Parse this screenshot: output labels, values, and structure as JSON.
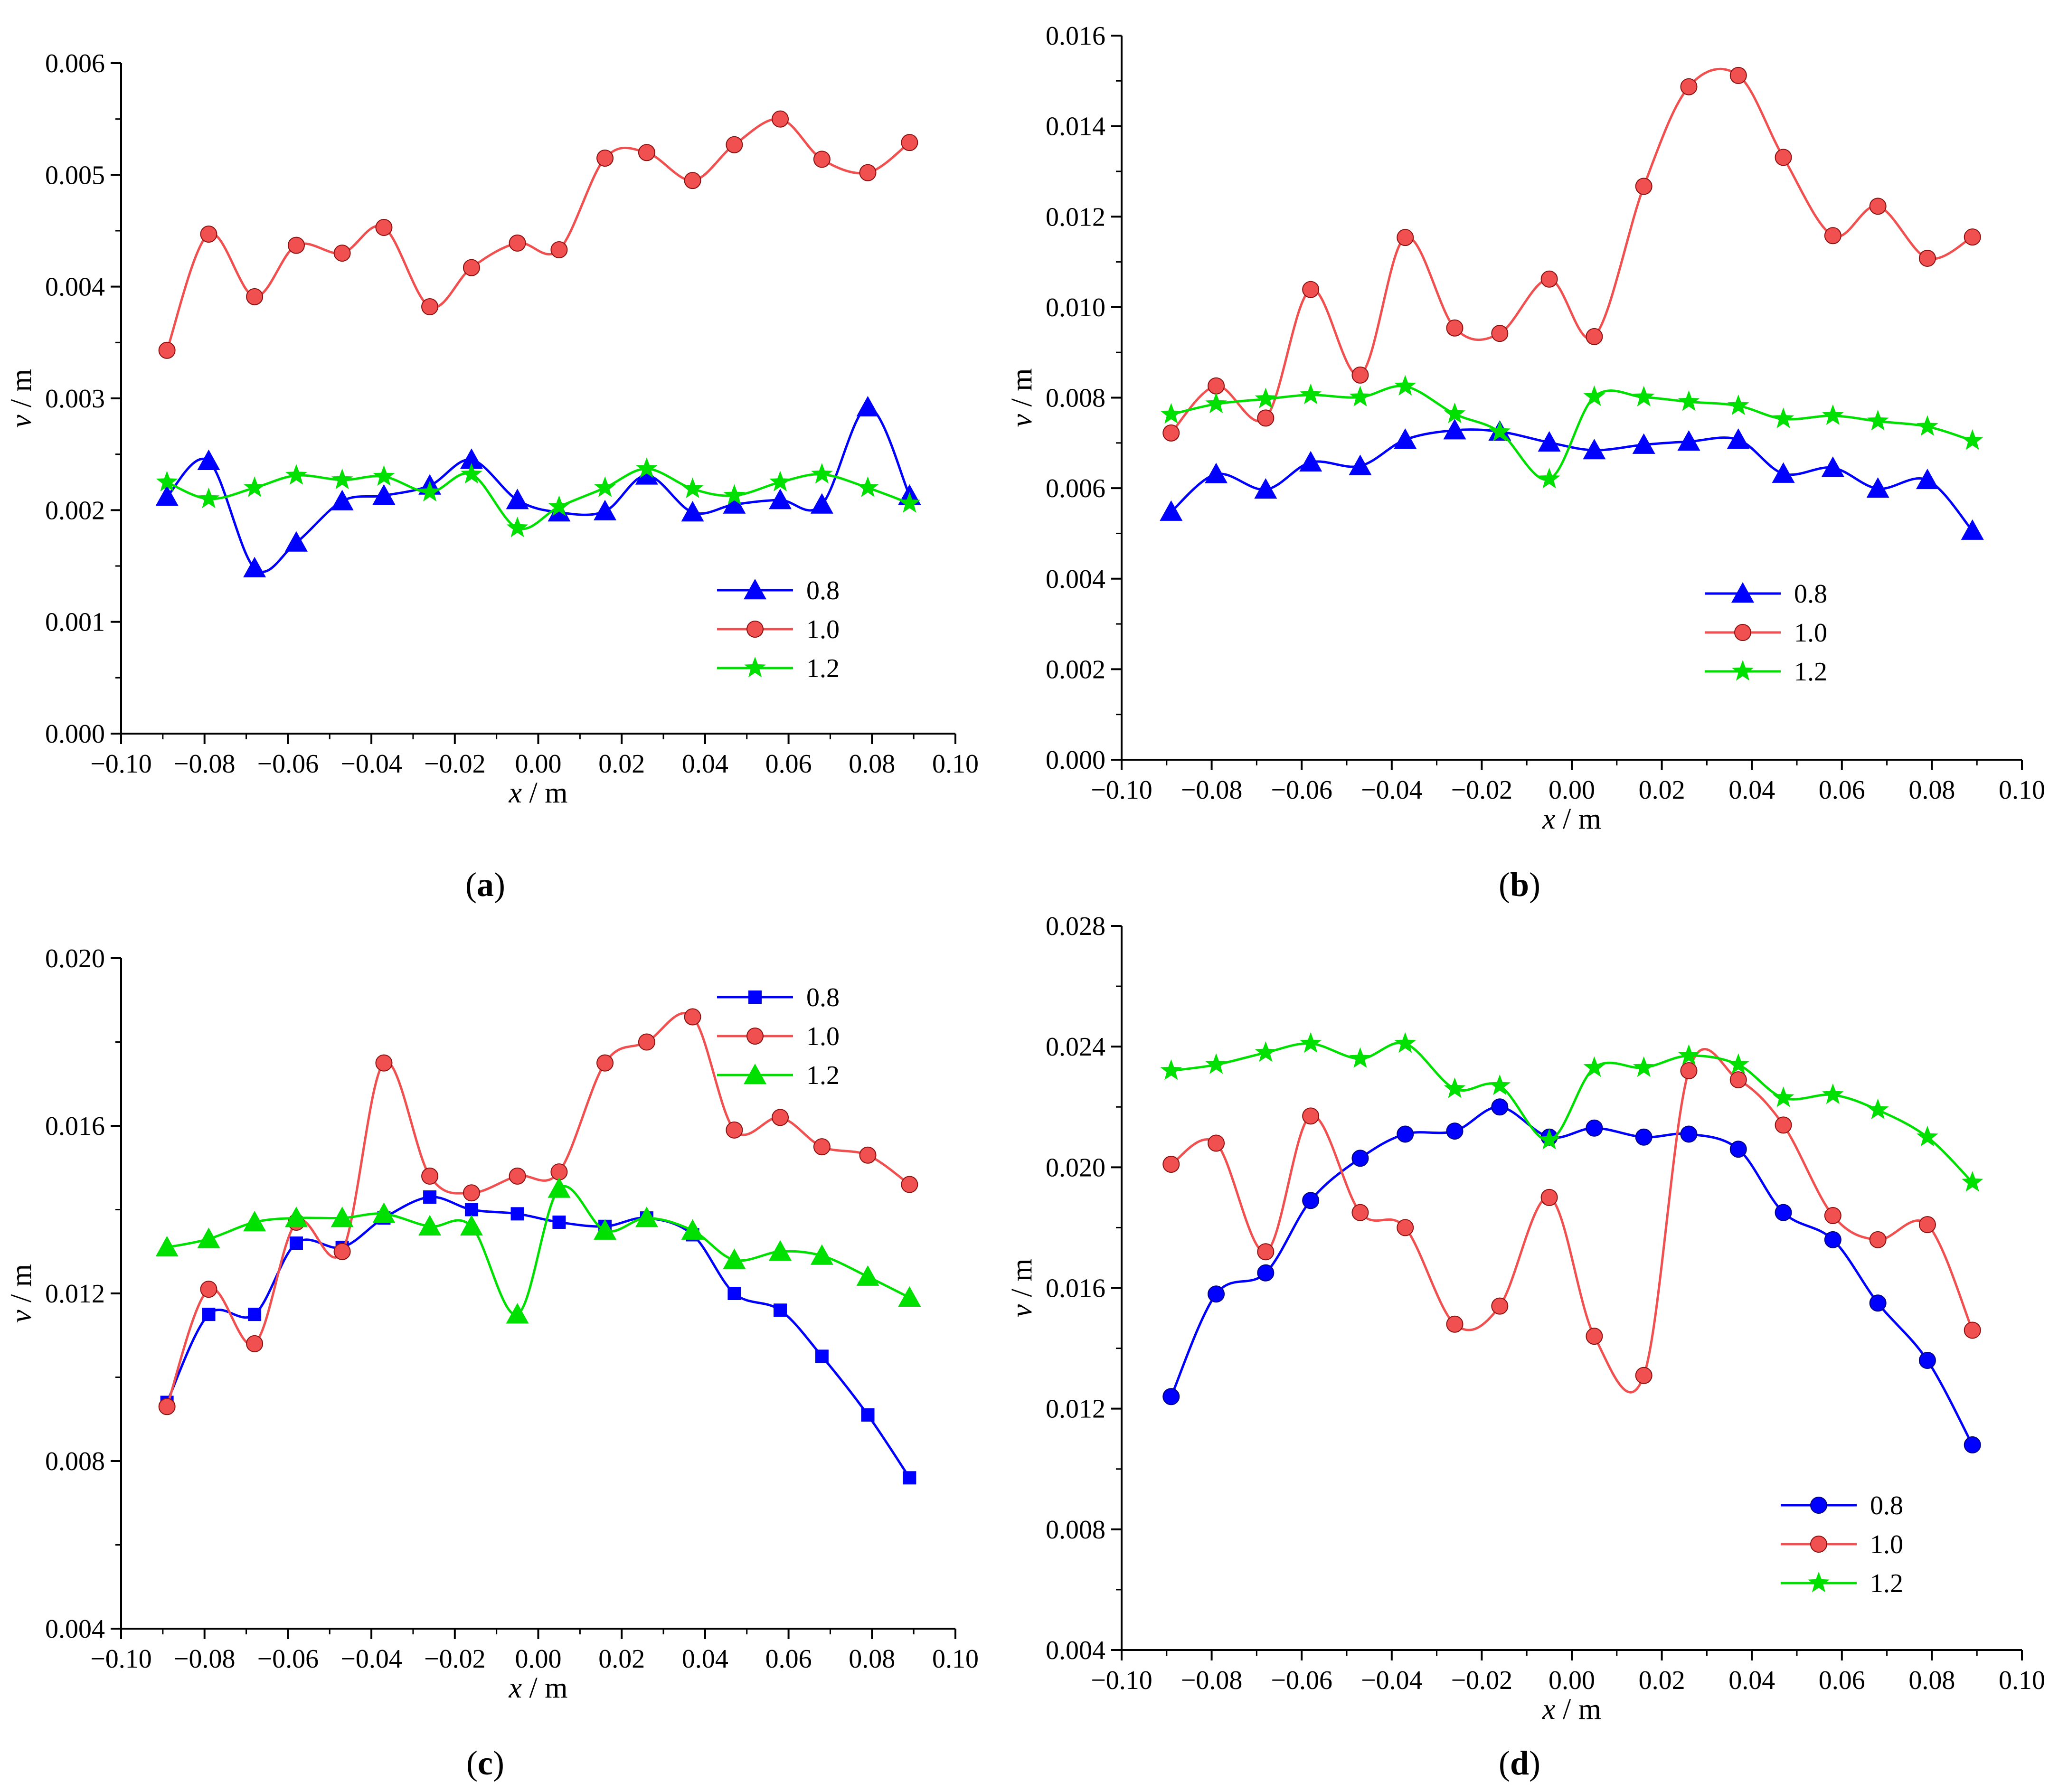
{
  "chart_data": [
    {
      "type": "line",
      "panel_label": "(a)",
      "panel_letter": "a",
      "xlabel_var": "x",
      "xlabel_unit": " / m",
      "ylabel_var": "v",
      "ylabel_unit": " / m",
      "xlim": [
        -0.1,
        0.1
      ],
      "ylim": [
        0.0,
        0.006
      ],
      "x_ticks": [
        "−0.10",
        "−0.08",
        "−0.06",
        "−0.04",
        "−0.02",
        "0.00",
        "0.02",
        "0.04",
        "0.06",
        "0.08",
        "0.10"
      ],
      "y_ticks": [
        "0.000",
        "0.001",
        "0.002",
        "0.003",
        "0.004",
        "0.005",
        "0.006"
      ],
      "y_tick_values": [
        0.0,
        0.001,
        0.002,
        0.003,
        0.004,
        0.005,
        0.006
      ],
      "legend_position": "bottom-right",
      "x": [
        -0.089,
        -0.079,
        -0.068,
        -0.058,
        -0.047,
        -0.037,
        -0.026,
        -0.016,
        -0.005,
        0.005,
        0.016,
        0.026,
        0.037,
        0.047,
        0.058,
        0.068,
        0.079,
        0.089
      ],
      "series": [
        {
          "name": "0.8",
          "color": "#0000ff",
          "marker": "triangle",
          "values": [
            0.00212,
            0.00244,
            0.00148,
            0.00171,
            0.00208,
            0.00213,
            0.00222,
            0.00245,
            0.00209,
            0.00198,
            0.00199,
            0.00231,
            0.00198,
            0.00205,
            0.00209,
            0.00205,
            0.00292,
            0.00213
          ]
        },
        {
          "name": "1.0",
          "color": "#f05050",
          "marker": "circle",
          "values": [
            0.00343,
            0.00447,
            0.00391,
            0.00437,
            0.0043,
            0.00453,
            0.00382,
            0.00417,
            0.00439,
            0.00433,
            0.00515,
            0.0052,
            0.00495,
            0.00527,
            0.0055,
            0.00514,
            0.00502,
            0.00529
          ]
        },
        {
          "name": "1.2",
          "color": "#00e000",
          "marker": "star",
          "values": [
            0.00225,
            0.0021,
            0.0022,
            0.00231,
            0.00227,
            0.0023,
            0.00216,
            0.00232,
            0.00184,
            0.00203,
            0.0022,
            0.00237,
            0.00219,
            0.00213,
            0.00225,
            0.00232,
            0.0022,
            0.00206
          ]
        }
      ]
    },
    {
      "type": "line",
      "panel_label": "(b)",
      "panel_letter": "b",
      "xlabel_var": "x",
      "xlabel_unit": " / m",
      "ylabel_var": "v",
      "ylabel_unit": " / m",
      "xlim": [
        -0.1,
        0.1
      ],
      "ylim": [
        0.0,
        0.016
      ],
      "x_ticks": [
        "−0.10",
        "−0.08",
        "−0.06",
        "−0.04",
        "−0.02",
        "0.00",
        "0.02",
        "0.04",
        "0.06",
        "0.08",
        "0.10"
      ],
      "y_ticks": [
        "0.000",
        "0.002",
        "0.004",
        "0.006",
        "0.008",
        "0.010",
        "0.012",
        "0.014",
        "0.016"
      ],
      "y_tick_values": [
        0.0,
        0.002,
        0.004,
        0.006,
        0.008,
        0.01,
        0.012,
        0.014,
        0.016
      ],
      "legend_position": "bottom-right",
      "x": [
        -0.089,
        -0.079,
        -0.068,
        -0.058,
        -0.047,
        -0.037,
        -0.026,
        -0.016,
        -0.005,
        0.005,
        0.016,
        0.026,
        0.037,
        0.047,
        0.058,
        0.068,
        0.079,
        0.089
      ],
      "series": [
        {
          "name": "0.8",
          "color": "#0000ff",
          "marker": "triangle",
          "values": [
            0.00548,
            0.00631,
            0.00597,
            0.00657,
            0.00649,
            0.00707,
            0.00728,
            0.00725,
            0.00701,
            0.00684,
            0.00696,
            0.00703,
            0.00707,
            0.00632,
            0.00645,
            0.00599,
            0.00618,
            0.00506
          ]
        },
        {
          "name": "1.0",
          "color": "#f05050",
          "marker": "circle",
          "values": [
            0.00722,
            0.00826,
            0.00755,
            0.01039,
            0.0085,
            0.01154,
            0.00954,
            0.00942,
            0.01062,
            0.00935,
            0.01267,
            0.01487,
            0.01512,
            0.01331,
            0.01158,
            0.01223,
            0.01108,
            0.01155
          ]
        },
        {
          "name": "1.2",
          "color": "#00e000",
          "marker": "star",
          "values": [
            0.00763,
            0.00786,
            0.00797,
            0.00806,
            0.00801,
            0.00825,
            0.00764,
            0.00724,
            0.0062,
            0.00802,
            0.00801,
            0.00791,
            0.00782,
            0.00753,
            0.0076,
            0.00748,
            0.00736,
            0.00705
          ]
        }
      ]
    },
    {
      "type": "line",
      "panel_label": "(c)",
      "panel_letter": "c",
      "xlabel_var": "x",
      "xlabel_unit": " / m",
      "ylabel_var": "v",
      "ylabel_unit": " / m",
      "xlim": [
        -0.1,
        0.1
      ],
      "ylim": [
        0.004,
        0.02
      ],
      "x_ticks": [
        "−0.10",
        "−0.08",
        "−0.06",
        "−0.04",
        "−0.02",
        "0.00",
        "0.02",
        "0.04",
        "0.06",
        "0.08",
        "0.10"
      ],
      "y_ticks": [
        "0.004",
        "0.008",
        "0.012",
        "0.016",
        "0.020"
      ],
      "y_tick_values": [
        0.004,
        0.008,
        0.012,
        0.016,
        0.02
      ],
      "legend_position": "top-right",
      "x": [
        -0.089,
        -0.079,
        -0.068,
        -0.058,
        -0.047,
        -0.037,
        -0.026,
        -0.016,
        -0.005,
        0.005,
        0.016,
        0.026,
        0.037,
        0.047,
        0.058,
        0.068,
        0.079,
        0.089
      ],
      "series": [
        {
          "name": "0.8",
          "color": "#0000ff",
          "marker": "square",
          "values": [
            0.0094,
            0.0115,
            0.0115,
            0.0132,
            0.0131,
            0.0138,
            0.0143,
            0.014,
            0.0139,
            0.0137,
            0.0136,
            0.0138,
            0.0134,
            0.012,
            0.0116,
            0.0105,
            0.0091,
            0.0076
          ]
        },
        {
          "name": "1.0",
          "color": "#f05050",
          "marker": "circle",
          "values": [
            0.0093,
            0.0121,
            0.0108,
            0.0137,
            0.013,
            0.0175,
            0.0148,
            0.0144,
            0.0148,
            0.0149,
            0.0175,
            0.018,
            0.0186,
            0.0159,
            0.0162,
            0.0155,
            0.0153,
            0.0146
          ]
        },
        {
          "name": "1.2",
          "color": "#00e000",
          "marker": "triangle",
          "values": [
            0.0131,
            0.0133,
            0.0137,
            0.0138,
            0.0138,
            0.0139,
            0.0136,
            0.0136,
            0.0115,
            0.0145,
            0.0135,
            0.0138,
            0.0135,
            0.0128,
            0.013,
            0.0129,
            0.0124,
            0.0119
          ]
        }
      ]
    },
    {
      "type": "line",
      "panel_label": "(d)",
      "panel_letter": "d",
      "xlabel_var": "x",
      "xlabel_unit": " / m",
      "ylabel_var": "v",
      "ylabel_unit": " / m",
      "xlim": [
        -0.1,
        0.1
      ],
      "ylim": [
        0.004,
        0.028
      ],
      "x_ticks": [
        "−0.10",
        "−0.08",
        "−0.06",
        "−0.04",
        "−0.02",
        "0.00",
        "0.02",
        "0.04",
        "0.06",
        "0.08",
        "0.10"
      ],
      "y_ticks": [
        "0.004",
        "0.008",
        "0.012",
        "0.016",
        "0.020",
        "0.024",
        "0.028"
      ],
      "y_tick_values": [
        0.004,
        0.008,
        0.012,
        0.016,
        0.02,
        0.024,
        0.028
      ],
      "legend_position": "bottom-right",
      "x": [
        -0.089,
        -0.079,
        -0.068,
        -0.058,
        -0.047,
        -0.037,
        -0.026,
        -0.016,
        -0.005,
        0.005,
        0.016,
        0.026,
        0.037,
        0.047,
        0.058,
        0.068,
        0.079,
        0.089
      ],
      "series": [
        {
          "name": "0.8",
          "color": "#0000ff",
          "marker": "circle",
          "values": [
            0.0124,
            0.0158,
            0.0165,
            0.0189,
            0.0203,
            0.0211,
            0.0212,
            0.022,
            0.021,
            0.0213,
            0.021,
            0.0211,
            0.0206,
            0.0185,
            0.0176,
            0.0155,
            0.0136,
            0.0108
          ]
        },
        {
          "name": "1.0",
          "color": "#f05050",
          "marker": "circle",
          "values": [
            0.0201,
            0.0208,
            0.0172,
            0.0217,
            0.0185,
            0.018,
            0.0148,
            0.0154,
            0.019,
            0.0144,
            0.0131,
            0.0232,
            0.0229,
            0.0214,
            0.0184,
            0.0176,
            0.0181,
            0.0146
          ]
        },
        {
          "name": "1.2",
          "color": "#00e000",
          "marker": "star",
          "values": [
            0.0232,
            0.0234,
            0.0238,
            0.0241,
            0.0236,
            0.0241,
            0.0226,
            0.0227,
            0.0209,
            0.0233,
            0.0233,
            0.0237,
            0.0234,
            0.0223,
            0.0224,
            0.0219,
            0.021,
            0.0195
          ]
        }
      ]
    }
  ]
}
